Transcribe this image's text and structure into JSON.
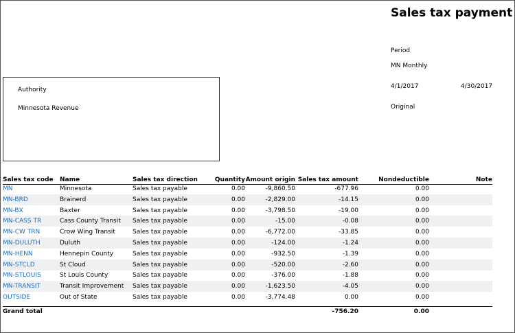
{
  "header": {
    "title": "Sales tax payment",
    "period_label": "Period",
    "period_name": "MN Monthly",
    "from_date": "4/1/2017",
    "to_date": "4/30/2017",
    "status": "Original"
  },
  "authority": {
    "label": "Authority",
    "name": "Minnesota Revenue"
  },
  "table": {
    "columns": [
      "Sales tax code",
      "Name",
      "Sales tax direction",
      "Quantity",
      "Amount origin",
      "Sales tax amount",
      "Nondeductible",
      "Note"
    ],
    "rows": [
      [
        "MN",
        "Minnesota",
        "Sales tax payable",
        "0.00",
        "-9,860.50",
        "-677.96",
        "0.00"
      ],
      [
        "MN-BRD",
        "Brainerd",
        "Sales tax payable",
        "0.00",
        "-2,829.00",
        "-14.15",
        "0.00"
      ],
      [
        "MN-BX",
        "Baxter",
        "Sales tax payable",
        "0.00",
        "-3,798.50",
        "-19.00",
        "0.00"
      ],
      [
        "MN-CASS TR",
        "Cass County Transit",
        "Sales tax payable",
        "0.00",
        "-15.00",
        "-0.08",
        "0.00"
      ],
      [
        "MN-CW TRN",
        "Crow Wing Transit",
        "Sales tax payable",
        "0.00",
        "-6,772.00",
        "-33.85",
        "0.00"
      ],
      [
        "MN-DULUTH",
        "Duluth",
        "Sales tax payable",
        "0.00",
        "-124.00",
        "-1.24",
        "0.00"
      ],
      [
        "MN-HENN",
        "Hennepin County",
        "Sales tax payable",
        "0.00",
        "-932.50",
        "-1.39",
        "0.00"
      ],
      [
        "MN-STCLD",
        "St Cloud",
        "Sales tax payable",
        "0.00",
        "-520.00",
        "-2.60",
        "0.00"
      ],
      [
        "MN-STLOUIS",
        "St Louis County",
        "Sales tax payable",
        "0.00",
        "-376.00",
        "-1.88",
        "0.00"
      ],
      [
        "MN-TRANSIT",
        "Transit Improvement",
        "Sales tax payable",
        "0.00",
        "-1,623.50",
        "-4.05",
        "0.00"
      ],
      [
        "OUTSIDE",
        "Out of State",
        "Sales tax payable",
        "0.00",
        "-3,774.48",
        "0.00",
        "0.00"
      ]
    ],
    "total": {
      "label": "Grand total",
      "sales_tax_amount": "-756.20",
      "nondeductible": "0.00"
    }
  }
}
